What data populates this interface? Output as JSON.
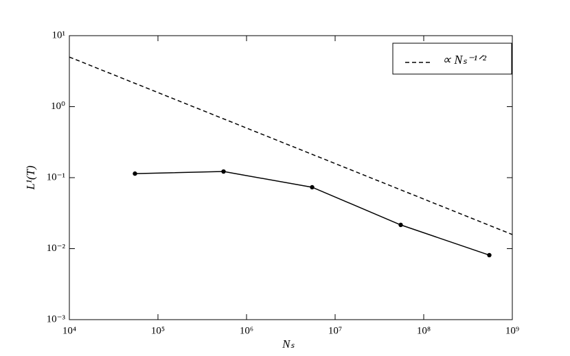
{
  "chart_data": {
    "type": "line",
    "x_label": "Nₛ",
    "y_label": "L¹(T)",
    "xscale": "log",
    "yscale": "log",
    "xlim": [
      10000,
      1000000000
    ],
    "ylim": [
      0.001,
      10
    ],
    "xticks": [
      {
        "value": 10000,
        "label": "10⁴"
      },
      {
        "value": 100000,
        "label": "10⁵"
      },
      {
        "value": 1000000,
        "label": "10⁶"
      },
      {
        "value": 10000000,
        "label": "10⁷"
      },
      {
        "value": 100000000,
        "label": "10⁸"
      },
      {
        "value": 1000000000,
        "label": "10⁹"
      }
    ],
    "yticks": [
      {
        "value": 0.001,
        "label": "10⁻³"
      },
      {
        "value": 0.01,
        "label": "10⁻²"
      },
      {
        "value": 0.1,
        "label": "10⁻¹"
      },
      {
        "value": 1,
        "label": "10⁰"
      },
      {
        "value": 10,
        "label": "10¹"
      }
    ],
    "legend_position": "upper right",
    "series": [
      {
        "color": "#000000",
        "linestyle": "solid",
        "marker": "o",
        "x": [
          55000,
          550000,
          5500000,
          55000000,
          550000000
        ],
        "values": [
          0.114,
          0.122,
          0.0733,
          0.0216,
          0.0081
        ]
      },
      {
        "name": "∝ Nₛ⁻¹ᐟ²",
        "color": "#000000",
        "linestyle": "dashed",
        "x": [
          10000,
          1000000000
        ],
        "values": [
          5.0,
          0.0158
        ]
      }
    ]
  }
}
